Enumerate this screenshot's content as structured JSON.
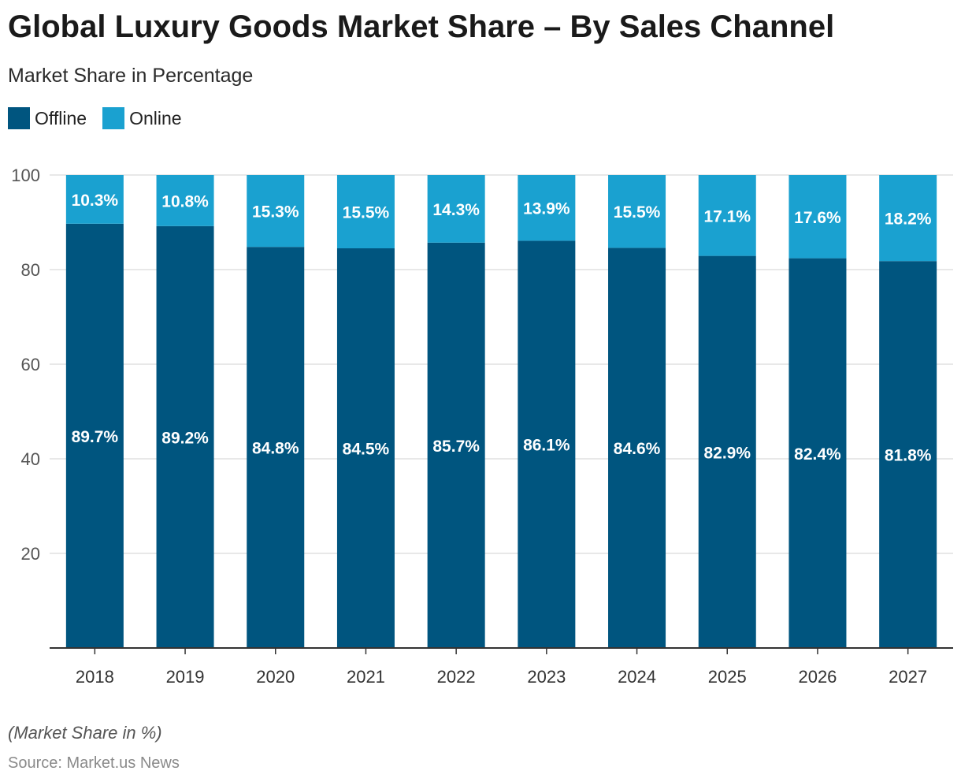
{
  "header": {
    "title": "Global Luxury Goods Market Share – By Sales Channel",
    "subtitle": "Market Share in Percentage"
  },
  "legend": [
    {
      "label": "Offline",
      "color": "#00557f"
    },
    {
      "label": "Online",
      "color": "#1aa1d0"
    }
  ],
  "footer": {
    "note": "(Market Share in %)",
    "source": "Source: Market.us News"
  },
  "chart_data": {
    "type": "bar",
    "stacked": true,
    "categories": [
      "2018",
      "2019",
      "2020",
      "2021",
      "2022",
      "2023",
      "2024",
      "2025",
      "2026",
      "2027"
    ],
    "series": [
      {
        "name": "Offline",
        "color": "#00557f",
        "values": [
          89.7,
          89.2,
          84.8,
          84.5,
          85.7,
          86.1,
          84.6,
          82.9,
          82.4,
          81.8
        ],
        "labels": [
          "89.7%",
          "89.2%",
          "84.8%",
          "84.5%",
          "85.7%",
          "86.1%",
          "84.6%",
          "82.9%",
          "82.4%",
          "81.8%"
        ]
      },
      {
        "name": "Online",
        "color": "#1aa1d0",
        "values": [
          10.3,
          10.8,
          15.3,
          15.5,
          14.3,
          13.9,
          15.5,
          17.1,
          17.6,
          18.2
        ],
        "labels": [
          "10.3%",
          "10.8%",
          "15.3%",
          "15.5%",
          "14.3%",
          "13.9%",
          "15.5%",
          "17.1%",
          "17.6%",
          "18.2%"
        ]
      }
    ],
    "yticks": [
      "20",
      "40",
      "60",
      "80",
      "100"
    ],
    "ylim": [
      0,
      100
    ],
    "grid": true,
    "legend_position": "top-left"
  }
}
